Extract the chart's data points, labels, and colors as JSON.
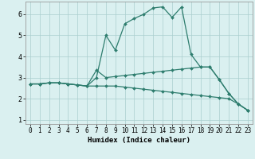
{
  "xlabel": "Humidex (Indice chaleur)",
  "x": [
    0,
    1,
    2,
    3,
    4,
    5,
    6,
    7,
    8,
    9,
    10,
    11,
    12,
    13,
    14,
    15,
    16,
    17,
    18,
    19,
    20,
    21,
    22,
    23
  ],
  "line1": [
    2.7,
    2.7,
    2.75,
    2.75,
    2.7,
    2.65,
    2.6,
    3.0,
    5.0,
    4.3,
    5.55,
    5.8,
    6.0,
    6.3,
    6.35,
    5.85,
    6.35,
    4.1,
    3.5,
    3.5,
    2.9,
    2.25,
    1.75,
    1.45
  ],
  "line2": [
    2.7,
    2.7,
    2.75,
    2.75,
    2.7,
    2.65,
    2.6,
    3.35,
    3.0,
    3.05,
    3.1,
    3.15,
    3.2,
    3.25,
    3.3,
    3.35,
    3.4,
    3.45,
    3.5,
    3.5,
    2.9,
    2.25,
    1.75,
    1.45
  ],
  "line3": [
    2.7,
    2.7,
    2.75,
    2.75,
    2.7,
    2.65,
    2.6,
    2.6,
    2.6,
    2.6,
    2.55,
    2.5,
    2.45,
    2.4,
    2.35,
    2.3,
    2.25,
    2.2,
    2.15,
    2.1,
    2.05,
    2.0,
    1.75,
    1.45
  ],
  "line_color": "#2e7d6e",
  "bg_color": "#daf0f0",
  "grid_color": "#aacece",
  "ylim_min": 0.8,
  "ylim_max": 6.6,
  "yticks": [
    1,
    2,
    3,
    4,
    5,
    6
  ],
  "xlim_min": -0.5,
  "xlim_max": 23.5,
  "marker": "D",
  "markersize": 2.0,
  "linewidth": 0.9,
  "tick_fontsize": 5.5,
  "xlabel_fontsize": 6.5
}
